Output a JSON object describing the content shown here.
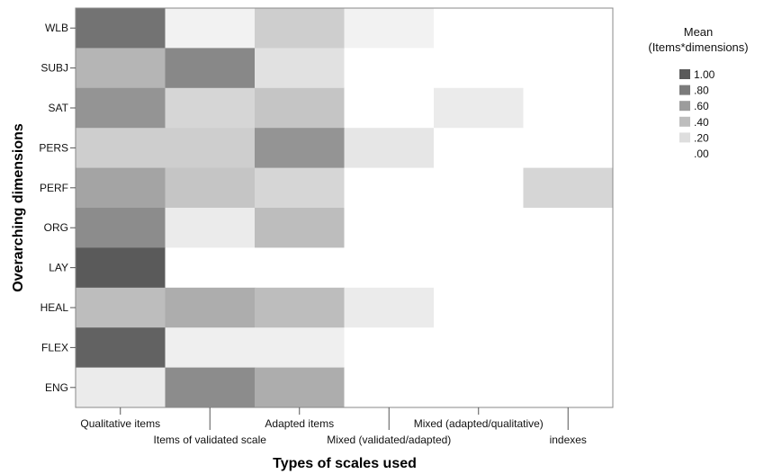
{
  "chart_data": {
    "type": "heatmap",
    "xlabel": "Types of scales used",
    "ylabel": "Overarching dimensions",
    "x_categories": [
      "Qualitative items",
      "Items of validated scale",
      "Adapted items",
      "Mixed (validated/adapted)",
      "Mixed (adapted/qualitative)",
      "indexes"
    ],
    "y_categories": [
      "WLB",
      "SUBJ",
      "SAT",
      "PERS",
      "PERF",
      "ORG",
      "LAY",
      "HEAL",
      "FLEX",
      "ENG"
    ],
    "values": [
      [
        0.85,
        0.08,
        0.3,
        0.08,
        0.0,
        0.0
      ],
      [
        0.45,
        0.72,
        0.18,
        0.0,
        0.0,
        0.0
      ],
      [
        0.65,
        0.25,
        0.35,
        0.0,
        0.12,
        0.0
      ],
      [
        0.3,
        0.3,
        0.65,
        0.15,
        0.0,
        0.0
      ],
      [
        0.55,
        0.35,
        0.25,
        0.0,
        0.0,
        0.25
      ],
      [
        0.7,
        0.12,
        0.4,
        0.0,
        0.0,
        0.0
      ],
      [
        1.0,
        0.0,
        0.0,
        0.0,
        0.0,
        0.0
      ],
      [
        0.4,
        0.5,
        0.4,
        0.12,
        0.0,
        0.0
      ],
      [
        0.95,
        0.1,
        0.1,
        0.0,
        0.0,
        0.0
      ],
      [
        0.12,
        0.7,
        0.5,
        0.0,
        0.0,
        0.0
      ]
    ],
    "colorbar": {
      "title": "Mean\n(Items*dimensions)",
      "ticks": [
        "1.00",
        ".80",
        ".60",
        ".40",
        ".20",
        ".00"
      ],
      "values": [
        1.0,
        0.8,
        0.6,
        0.4,
        0.2,
        0.0
      ],
      "low_color": "#ffffff",
      "high_color": "#5a5a5a"
    },
    "legend_position": "top-right",
    "grid": false
  }
}
